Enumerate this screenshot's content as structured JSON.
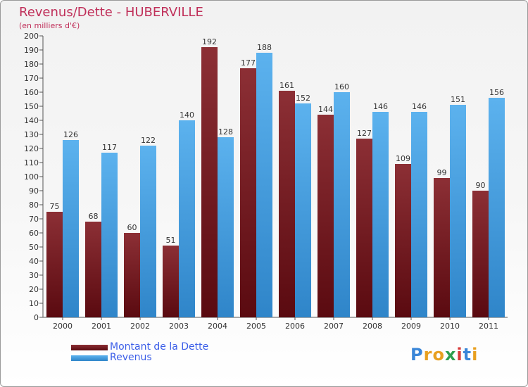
{
  "header": {
    "title": "Revenus/Dette - HUBERVILLE",
    "subtitle": "(en milliers d'€)"
  },
  "legend": {
    "items": [
      {
        "label": "Montant de la Dette",
        "color": "#7a1f24"
      },
      {
        "label": "Revenus",
        "color": "#4aa3e6"
      }
    ]
  },
  "logo": {
    "text": "Proxiti",
    "letter_colors": [
      "#3a86d8",
      "#e8a020",
      "#e8a020",
      "#2e9e4e",
      "#d83a3a",
      "#3a86d8",
      "#e8a020"
    ]
  },
  "chart_data": {
    "type": "bar",
    "categories": [
      "2000",
      "2001",
      "2002",
      "2003",
      "2004",
      "2005",
      "2006",
      "2007",
      "2008",
      "2009",
      "2010",
      "2011"
    ],
    "series": [
      {
        "name": "Montant de la Dette",
        "values": [
          75,
          68,
          60,
          51,
          192,
          177,
          161,
          144,
          127,
          109,
          99,
          90
        ],
        "color": "#7a1f24"
      },
      {
        "name": "Revenus",
        "values": [
          126,
          117,
          122,
          140,
          128,
          188,
          152,
          160,
          146,
          146,
          151,
          156
        ],
        "color": "#4aa3e6"
      }
    ],
    "yticks": [
      "0",
      "10",
      "20",
      "30",
      "40",
      "50",
      "60",
      "70",
      "80",
      "90",
      "100",
      "110",
      "120",
      "130",
      "140",
      "150",
      "160",
      "170",
      "180",
      "190",
      "200"
    ],
    "ylim": [
      0,
      200
    ],
    "grid": false
  }
}
